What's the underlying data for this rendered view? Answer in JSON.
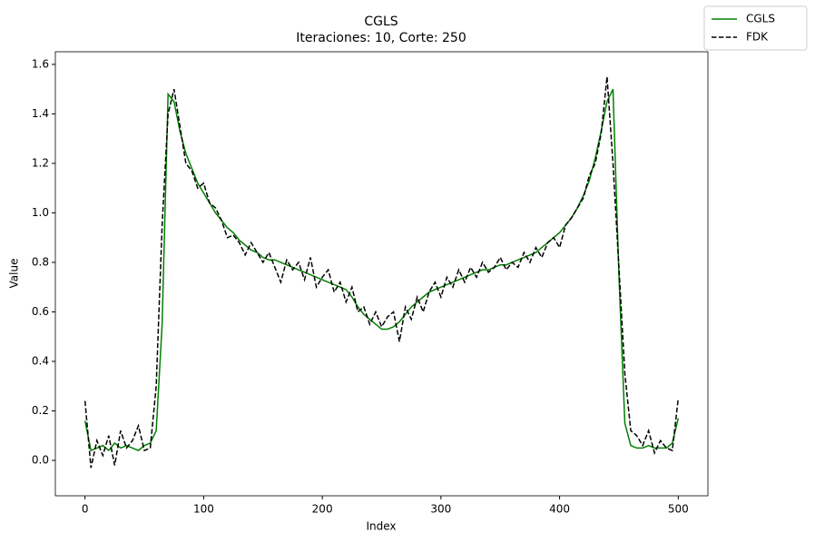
{
  "chart_data": {
    "type": "line",
    "title": "CGLS",
    "subtitle": "Iteraciones: 10, Corte: 250",
    "x_label": "Index",
    "y_label": "Value",
    "x": [
      0,
      5,
      10,
      15,
      20,
      25,
      30,
      35,
      40,
      45,
      50,
      55,
      60,
      65,
      70,
      75,
      80,
      85,
      90,
      95,
      100,
      105,
      110,
      115,
      120,
      125,
      130,
      135,
      140,
      145,
      150,
      155,
      160,
      165,
      170,
      175,
      180,
      185,
      190,
      195,
      200,
      205,
      210,
      215,
      220,
      225,
      230,
      235,
      240,
      245,
      250,
      255,
      260,
      265,
      270,
      275,
      280,
      285,
      290,
      295,
      300,
      305,
      310,
      315,
      320,
      325,
      330,
      335,
      340,
      345,
      350,
      355,
      360,
      365,
      370,
      375,
      380,
      385,
      390,
      395,
      400,
      405,
      410,
      415,
      420,
      425,
      430,
      435,
      440,
      445,
      450,
      455,
      460,
      465,
      470,
      475,
      480,
      485,
      490,
      495,
      500
    ],
    "series": [
      {
        "name": "CGLS",
        "color": "#008000",
        "linestyle": "solid",
        "values": [
          0.16,
          0.04,
          0.05,
          0.06,
          0.04,
          0.07,
          0.05,
          0.06,
          0.05,
          0.04,
          0.06,
          0.07,
          0.12,
          0.55,
          1.48,
          1.45,
          1.33,
          1.24,
          1.18,
          1.12,
          1.08,
          1.04,
          1.0,
          0.97,
          0.94,
          0.92,
          0.89,
          0.87,
          0.85,
          0.84,
          0.82,
          0.81,
          0.81,
          0.8,
          0.79,
          0.78,
          0.77,
          0.76,
          0.75,
          0.74,
          0.73,
          0.72,
          0.71,
          0.7,
          0.69,
          0.66,
          0.62,
          0.59,
          0.57,
          0.55,
          0.53,
          0.53,
          0.54,
          0.56,
          0.59,
          0.62,
          0.64,
          0.66,
          0.68,
          0.69,
          0.7,
          0.71,
          0.72,
          0.73,
          0.74,
          0.75,
          0.76,
          0.77,
          0.77,
          0.78,
          0.79,
          0.79,
          0.8,
          0.81,
          0.82,
          0.83,
          0.84,
          0.86,
          0.88,
          0.9,
          0.92,
          0.95,
          0.98,
          1.02,
          1.07,
          1.13,
          1.22,
          1.33,
          1.45,
          1.5,
          0.75,
          0.15,
          0.06,
          0.05,
          0.05,
          0.06,
          0.05,
          0.05,
          0.05,
          0.07,
          0.17
        ]
      },
      {
        "name": "FDK",
        "color": "#000000",
        "linestyle": "dashed",
        "values": [
          0.24,
          -0.03,
          0.08,
          0.02,
          0.1,
          -0.02,
          0.12,
          0.05,
          0.08,
          0.14,
          0.04,
          0.05,
          0.3,
          0.95,
          1.4,
          1.5,
          1.35,
          1.2,
          1.17,
          1.1,
          1.12,
          1.04,
          1.02,
          0.97,
          0.9,
          0.91,
          0.88,
          0.83,
          0.88,
          0.84,
          0.8,
          0.84,
          0.78,
          0.72,
          0.81,
          0.77,
          0.8,
          0.73,
          0.82,
          0.7,
          0.74,
          0.77,
          0.68,
          0.72,
          0.64,
          0.7,
          0.6,
          0.62,
          0.55,
          0.6,
          0.54,
          0.58,
          0.6,
          0.48,
          0.62,
          0.57,
          0.66,
          0.6,
          0.68,
          0.72,
          0.66,
          0.74,
          0.7,
          0.77,
          0.72,
          0.78,
          0.74,
          0.8,
          0.76,
          0.78,
          0.82,
          0.77,
          0.8,
          0.78,
          0.84,
          0.8,
          0.86,
          0.82,
          0.88,
          0.9,
          0.86,
          0.95,
          0.98,
          1.02,
          1.06,
          1.15,
          1.2,
          1.32,
          1.55,
          1.2,
          0.78,
          0.35,
          0.12,
          0.1,
          0.06,
          0.12,
          0.03,
          0.08,
          0.05,
          0.04,
          0.25
        ]
      }
    ],
    "xlim": [
      -25,
      525
    ],
    "ylim": [
      -0.143,
      1.651
    ],
    "xticks": [
      0,
      100,
      200,
      300,
      400,
      500
    ],
    "yticks": [
      {
        "value": 0,
        "label": "0.0"
      },
      0.2,
      0.4,
      0.6,
      0.8,
      {
        "value": 1,
        "label": "1.0"
      },
      1.2,
      1.4,
      1.6
    ],
    "legend": "upper right"
  }
}
